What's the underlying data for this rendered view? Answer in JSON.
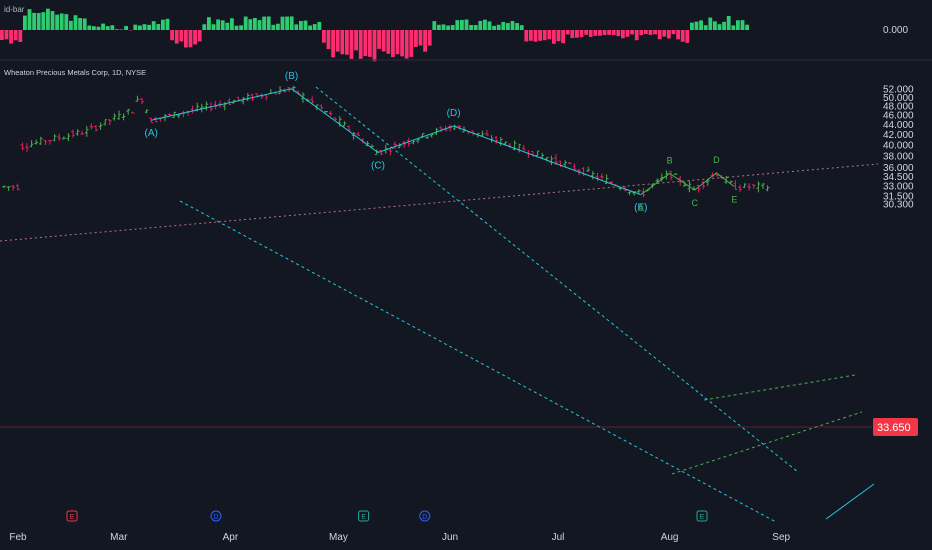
{
  "indicator": {
    "name": "id-bar",
    "zero_label": "0.000"
  },
  "symbol": {
    "title": "Wheaton Precious Metals Corp, 1D, NYSE"
  },
  "last_price": "33.650",
  "colors": {
    "background": "#131722",
    "bull": "#26a69a",
    "bar_up": "#4caf50",
    "bar_down": "#e91e63",
    "hist_up": "#2ecc71",
    "hist_down": "#ff2d6f",
    "wave": "#26c6da",
    "abcde": "#4caf50",
    "price_tag": "#f23645"
  },
  "chart_data": {
    "type": "ohlc",
    "y_axis_labels": [
      "52.000",
      "50.000",
      "48.000",
      "46.000",
      "44.000",
      "42.000",
      "40.000",
      "38.000",
      "36.000",
      "34.500",
      "33.000",
      "31.500",
      "30.300"
    ],
    "y_axis_values": [
      52,
      50,
      48,
      46,
      44,
      42,
      40,
      38,
      36,
      34.5,
      33,
      31.5,
      30.3
    ],
    "y_scale": "log",
    "x_axis_labels": [
      "Feb",
      "Mar",
      "Apr",
      "May",
      "Jun",
      "Jul",
      "Aug",
      "Sep"
    ],
    "wave_points": [
      {
        "label": "(A)",
        "date": "2023-03-10",
        "price": 44.8
      },
      {
        "label": "(B)",
        "date": "2023-04-18",
        "price": 51.9
      },
      {
        "label": "(C)",
        "date": "2023-05-12",
        "price": 38.5
      },
      {
        "label": "(D)",
        "date": "2023-06-02",
        "price": 43.6
      },
      {
        "label": "(E)",
        "date": "2023-07-24",
        "price": 31.6
      }
    ],
    "abcde_points": [
      {
        "label": "A",
        "date": "2023-07-24",
        "price": 31.6
      },
      {
        "label": "B",
        "date": "2023-08-01",
        "price": 34.9
      },
      {
        "label": "C",
        "date": "2023-08-08",
        "price": 32.3
      },
      {
        "label": "D",
        "date": "2023-08-14",
        "price": 35.0
      },
      {
        "label": "E",
        "date": "2023-08-19",
        "price": 32.8
      }
    ],
    "event_markers": [
      {
        "label": "E",
        "date": "2023-02-16"
      },
      {
        "label": "D",
        "date": "2023-03-28"
      },
      {
        "label": "E",
        "date": "2023-05-08"
      },
      {
        "label": "D",
        "date": "2023-05-25"
      },
      {
        "label": "E",
        "date": "2023-08-10"
      }
    ],
    "grid": false
  }
}
